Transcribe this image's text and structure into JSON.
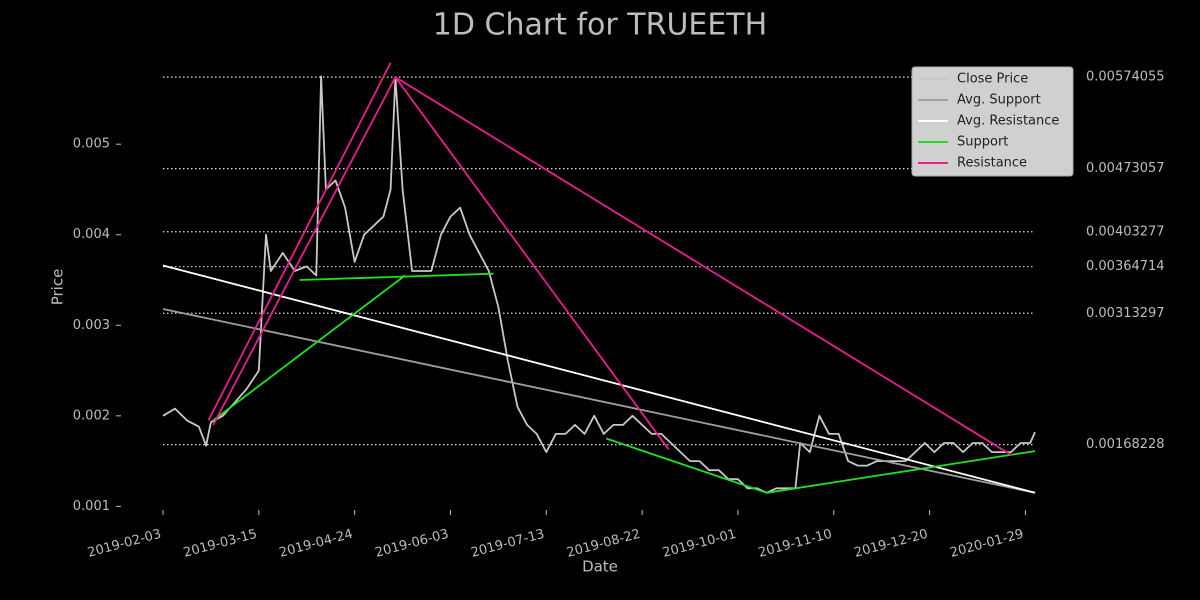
{
  "chart_data": {
    "type": "line",
    "title": "1D Chart for TRUEETH",
    "x_label": "Date",
    "y_label": "Price",
    "xlim": [
      "2019-02-03",
      "2020-02-02"
    ],
    "xticks": [
      "2019-02-03",
      "2019-03-15",
      "2019-04-24",
      "2019-06-03",
      "2019-07-13",
      "2019-08-22",
      "2019-10-01",
      "2019-11-10",
      "2019-12-20",
      "2020-01-29"
    ],
    "ylim": [
      0.00096,
      0.00593
    ],
    "yticks": [
      0.001,
      0.002,
      0.003,
      0.004,
      0.005
    ],
    "levels": [
      0.00574055,
      0.00473057,
      0.00403277,
      0.00364714,
      0.00313297,
      0.00168228
    ],
    "legend": "upper right",
    "series": [
      {
        "name": "Close Price",
        "color": "#c8c8c8",
        "x": [
          "2019-02-03",
          "2019-02-08",
          "2019-02-13",
          "2019-02-18",
          "2019-02-21",
          "2019-02-23",
          "2019-02-28",
          "2019-03-05",
          "2019-03-10",
          "2019-03-15",
          "2019-03-18",
          "2019-03-20",
          "2019-03-25",
          "2019-03-30",
          "2019-04-04",
          "2019-04-08",
          "2019-04-10",
          "2019-04-12",
          "2019-04-16",
          "2019-04-20",
          "2019-04-24",
          "2019-04-28",
          "2019-05-02",
          "2019-05-06",
          "2019-05-09",
          "2019-05-11",
          "2019-05-14",
          "2019-05-18",
          "2019-05-22",
          "2019-05-26",
          "2019-05-30",
          "2019-06-03",
          "2019-06-07",
          "2019-06-11",
          "2019-06-15",
          "2019-06-19",
          "2019-06-23",
          "2019-06-27",
          "2019-07-01",
          "2019-07-05",
          "2019-07-09",
          "2019-07-13",
          "2019-07-17",
          "2019-07-21",
          "2019-07-25",
          "2019-07-29",
          "2019-08-02",
          "2019-08-06",
          "2019-08-10",
          "2019-08-14",
          "2019-08-18",
          "2019-08-22",
          "2019-08-26",
          "2019-08-30",
          "2019-09-03",
          "2019-09-07",
          "2019-09-11",
          "2019-09-15",
          "2019-09-19",
          "2019-09-23",
          "2019-09-27",
          "2019-10-01",
          "2019-10-05",
          "2019-10-09",
          "2019-10-13",
          "2019-10-17",
          "2019-10-21",
          "2019-10-25",
          "2019-10-27",
          "2019-10-31",
          "2019-11-04",
          "2019-11-08",
          "2019-11-12",
          "2019-11-16",
          "2019-11-20",
          "2019-11-24",
          "2019-11-28",
          "2019-12-02",
          "2019-12-06",
          "2019-12-10",
          "2019-12-14",
          "2019-12-18",
          "2019-12-22",
          "2019-12-26",
          "2019-12-30",
          "2020-01-03",
          "2020-01-07",
          "2020-01-11",
          "2020-01-15",
          "2020-01-19",
          "2020-01-23",
          "2020-01-27",
          "2020-01-31",
          "2020-02-02"
        ],
        "values": [
          0.002,
          0.00208,
          0.00195,
          0.00188,
          0.00167,
          0.00193,
          0.002,
          0.00215,
          0.0023,
          0.0025,
          0.004,
          0.0036,
          0.0038,
          0.0036,
          0.00365,
          0.00355,
          0.00575,
          0.0045,
          0.0046,
          0.0043,
          0.0037,
          0.004,
          0.0041,
          0.0042,
          0.0045,
          0.00574,
          0.0045,
          0.0036,
          0.0036,
          0.0036,
          0.004,
          0.0042,
          0.0043,
          0.004,
          0.0038,
          0.0036,
          0.0032,
          0.0026,
          0.0021,
          0.0019,
          0.0018,
          0.0016,
          0.0018,
          0.0018,
          0.0019,
          0.0018,
          0.002,
          0.0018,
          0.0019,
          0.0019,
          0.002,
          0.0019,
          0.0018,
          0.0018,
          0.0017,
          0.0016,
          0.0015,
          0.0015,
          0.0014,
          0.0014,
          0.0013,
          0.0013,
          0.0012,
          0.0012,
          0.00115,
          0.0012,
          0.0012,
          0.0012,
          0.0017,
          0.0016,
          0.002,
          0.0018,
          0.0018,
          0.0015,
          0.00145,
          0.00145,
          0.0015,
          0.0015,
          0.0015,
          0.0015,
          0.0016,
          0.0017,
          0.0016,
          0.0017,
          0.0017,
          0.0016,
          0.0017,
          0.0017,
          0.0016,
          0.0016,
          0.0016,
          0.0017,
          0.0017,
          0.00182
        ]
      },
      {
        "name": "Avg. Support",
        "color": "#a0a0a0",
        "x": [
          "2019-02-03",
          "2020-02-02"
        ],
        "values": [
          0.00318,
          0.00115
        ]
      },
      {
        "name": "Avg. Resistance",
        "color": "#ffffff",
        "x": [
          "2019-02-03",
          "2020-02-02"
        ],
        "values": [
          0.00366,
          0.00115
        ]
      },
      {
        "name": "Support",
        "color": "#22e01e",
        "segments": [
          {
            "x": [
              "2019-02-24",
              "2019-05-15"
            ],
            "values": [
              0.00195,
              0.00355
            ]
          },
          {
            "x": [
              "2019-04-01",
              "2019-06-21"
            ],
            "values": [
              0.0035,
              0.00357
            ]
          },
          {
            "x": [
              "2019-08-07",
              "2019-10-13"
            ],
            "values": [
              0.00175,
              0.00115
            ]
          },
          {
            "x": [
              "2019-10-13",
              "2020-02-02"
            ],
            "values": [
              0.00115,
              0.00161
            ]
          }
        ]
      },
      {
        "name": "Resistance",
        "color": "#e8208e",
        "segments": [
          {
            "x": [
              "2019-02-22",
              "2019-05-09"
            ],
            "values": [
              0.00195,
              0.0059
            ]
          },
          {
            "x": [
              "2019-02-24",
              "2019-05-11"
            ],
            "values": [
              0.0019,
              0.00574
            ]
          },
          {
            "x": [
              "2019-05-11",
              "2019-09-02"
            ],
            "values": [
              0.00574,
              0.00163
            ]
          },
          {
            "x": [
              "2019-05-11",
              "2020-01-23"
            ],
            "values": [
              0.00574,
              0.00157
            ]
          }
        ]
      }
    ]
  }
}
